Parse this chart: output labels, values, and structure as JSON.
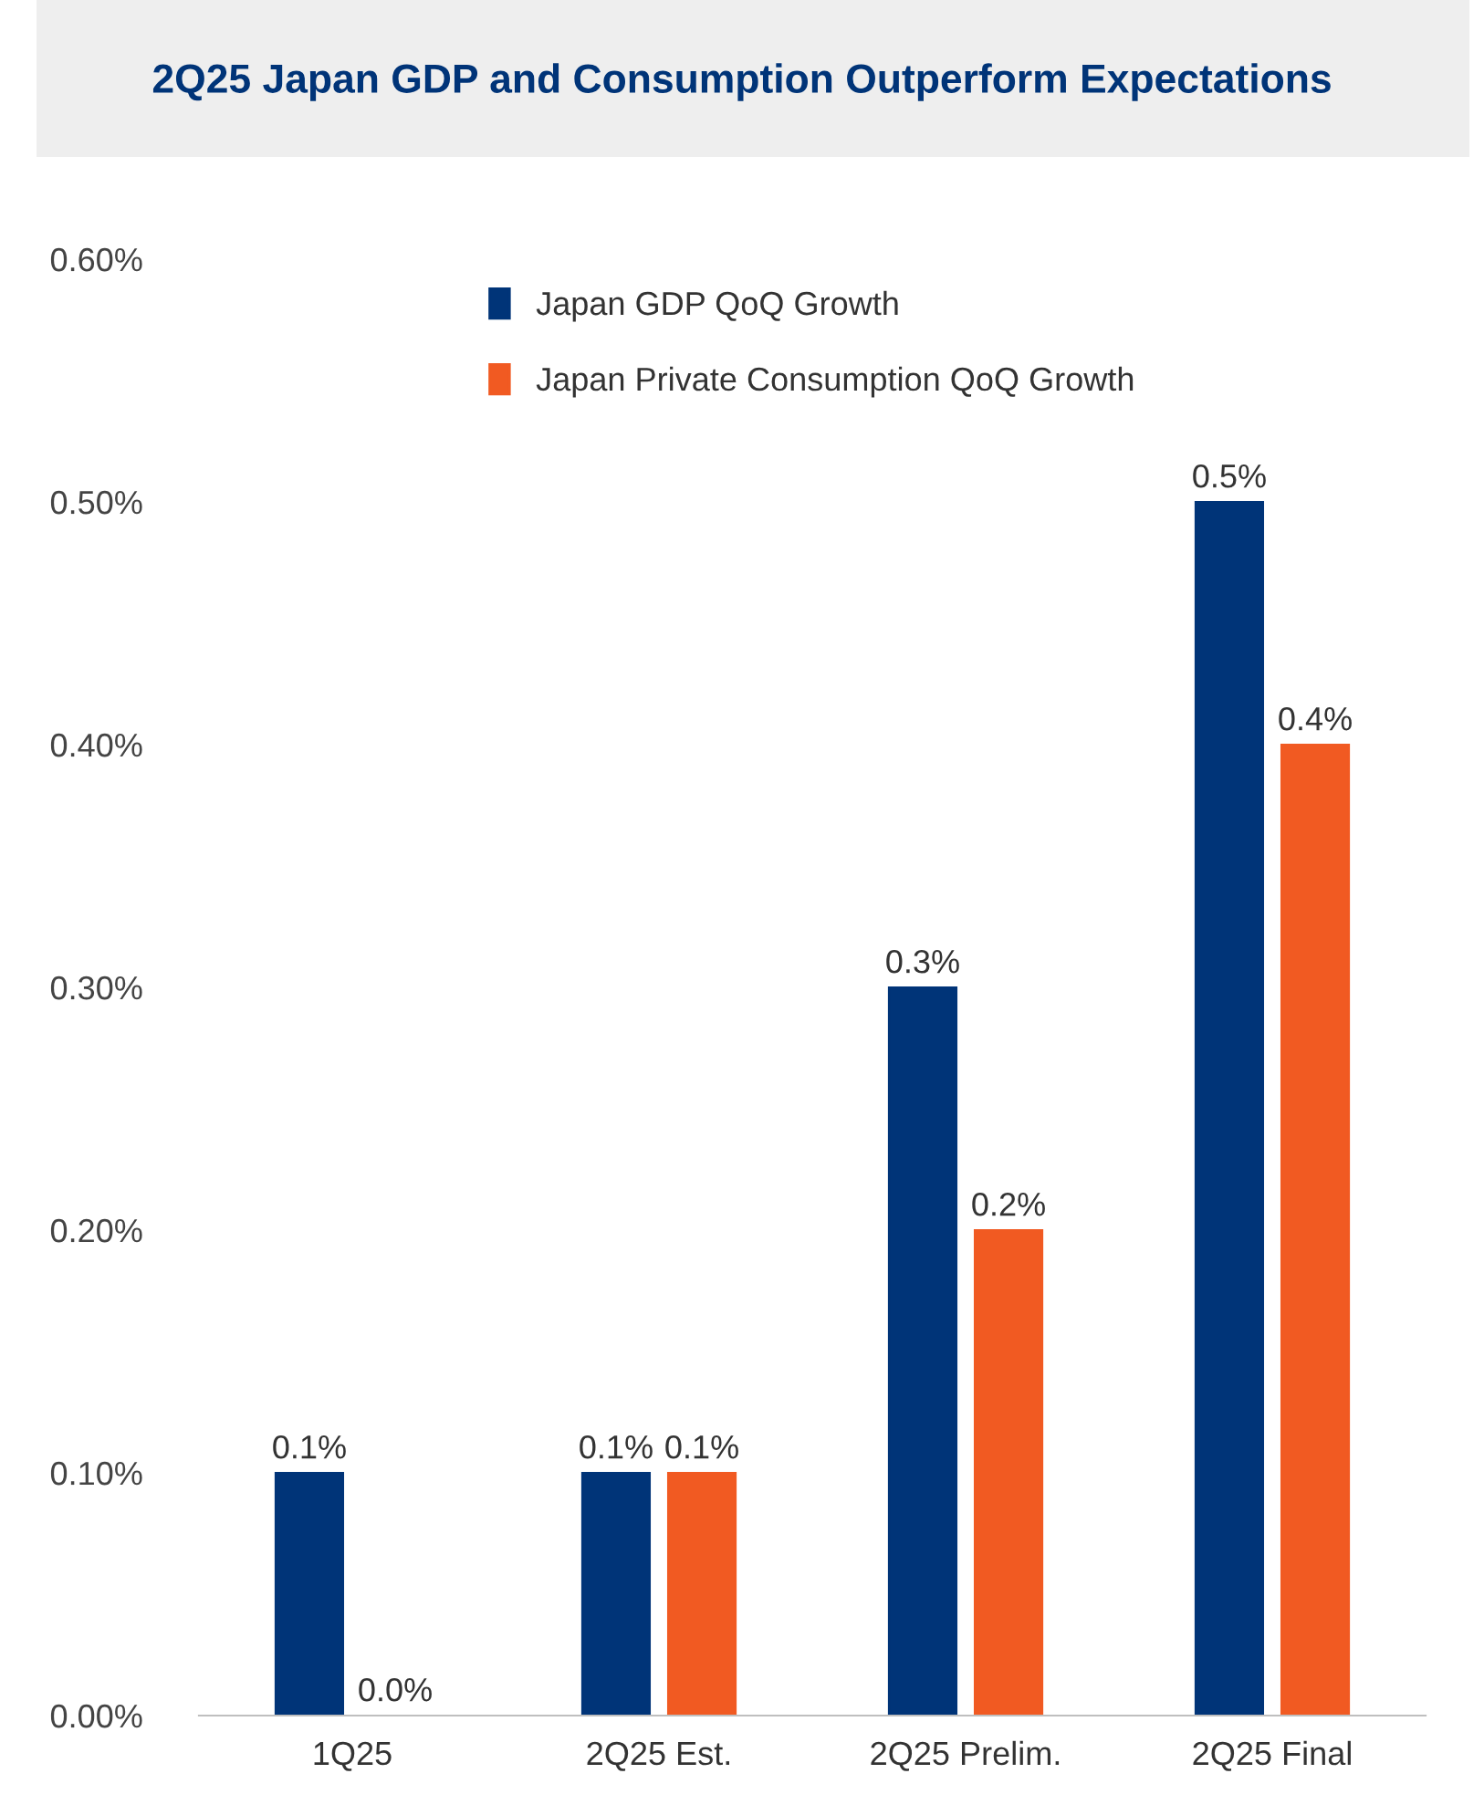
{
  "chart_data": {
    "type": "bar",
    "title": "2Q25 Japan GDP and Consumption Outperform Expectations",
    "categories": [
      "1Q25",
      "2Q25 Est.",
      "2Q25 Prelim.",
      "2Q25 Final"
    ],
    "series": [
      {
        "name": "Japan GDP QoQ Growth",
        "color": "#003478",
        "values": [
          0.1,
          0.1,
          0.3,
          0.5
        ],
        "value_labels": [
          "0.1%",
          "0.1%",
          "0.3%",
          "0.5%"
        ]
      },
      {
        "name": "Japan Private Consumption QoQ Growth",
        "color": "#f15a22",
        "values": [
          0.0,
          0.1,
          0.2,
          0.4
        ],
        "value_labels": [
          "0.0%",
          "0.1%",
          "0.2%",
          "0.4%"
        ]
      }
    ],
    "ylim": [
      0,
      0.6
    ],
    "yticks": [
      {
        "value": 0,
        "label": "0.00%"
      },
      {
        "value": 0.1,
        "label": "0.10%"
      },
      {
        "value": 0.2,
        "label": "0.20%"
      },
      {
        "value": 0.3,
        "label": "0.30%"
      },
      {
        "value": 0.4,
        "label": "0.40%"
      },
      {
        "value": 0.5,
        "label": "0.50%"
      },
      {
        "value": 0.6,
        "label": "0.60%"
      }
    ],
    "grid": false,
    "legend": "top"
  }
}
